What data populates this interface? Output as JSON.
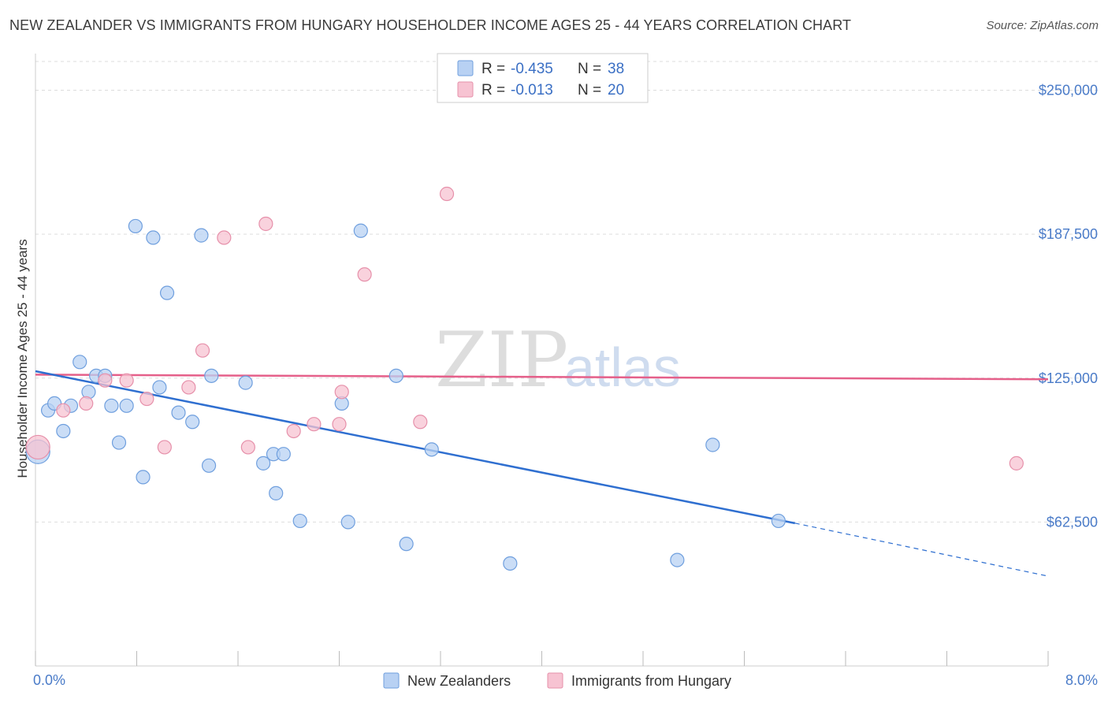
{
  "header": {
    "title": "NEW ZEALANDER VS IMMIGRANTS FROM HUNGARY HOUSEHOLDER INCOME AGES 25 - 44 YEARS CORRELATION CHART",
    "source": "Source: ZipAtlas.com"
  },
  "watermark": {
    "zip": "ZIP",
    "atlas": "atlas"
  },
  "colors": {
    "blue_fill": "#b8d1f3",
    "blue_stroke": "#6f9fde",
    "blue_line": "#2f6fd0",
    "pink_fill": "#f7c3d2",
    "pink_stroke": "#e690aa",
    "pink_line": "#e5608a",
    "grid": "#dddddd",
    "axis_label": "#4a7bc8"
  },
  "legend": {
    "rows": [
      {
        "r_label": "R =",
        "r_value": "-0.435",
        "n_label": "N =",
        "n_value": "38"
      },
      {
        "r_label": "R =",
        "r_value": "-0.013",
        "n_label": "N =",
        "n_value": "20"
      }
    ]
  },
  "chart_data": {
    "type": "scatter",
    "title": "NEW ZEALANDER VS IMMIGRANTS FROM HUNGARY HOUSEHOLDER INCOME AGES 25 - 44 YEARS CORRELATION CHART",
    "xlabel": "",
    "ylabel": "Householder Income Ages 25 - 44 years",
    "xlim": [
      0,
      8
    ],
    "ylim": [
      0,
      262500
    ],
    "x_tick_labels": [
      "0.0%",
      "8.0%"
    ],
    "y_ticks": [
      62500,
      125000,
      187500,
      250000
    ],
    "y_tick_labels": [
      "$62,500",
      "$125,000",
      "$187,500",
      "$250,000"
    ],
    "grid": "horizontal dashed",
    "legend_position": "top-center",
    "series": [
      {
        "name": "New Zealanders",
        "r": -0.435,
        "n": 38,
        "points": [
          [
            0.02,
            93000
          ],
          [
            0.1,
            111000
          ],
          [
            0.15,
            114000
          ],
          [
            0.22,
            102000
          ],
          [
            0.28,
            113000
          ],
          [
            0.35,
            132000
          ],
          [
            0.42,
            119000
          ],
          [
            0.48,
            126000
          ],
          [
            0.55,
            126000
          ],
          [
            0.6,
            113000
          ],
          [
            0.66,
            97000
          ],
          [
            0.72,
            113000
          ],
          [
            0.79,
            191000
          ],
          [
            0.85,
            82000
          ],
          [
            0.93,
            186000
          ],
          [
            0.98,
            121000
          ],
          [
            1.04,
            162000
          ],
          [
            1.13,
            110000
          ],
          [
            1.24,
            106000
          ],
          [
            1.31,
            187000
          ],
          [
            1.37,
            87000
          ],
          [
            1.39,
            126000
          ],
          [
            1.66,
            123000
          ],
          [
            1.8,
            88000
          ],
          [
            1.88,
            92000
          ],
          [
            1.9,
            75000
          ],
          [
            1.96,
            92000
          ],
          [
            2.09,
            63000
          ],
          [
            2.42,
            114000
          ],
          [
            2.47,
            62500
          ],
          [
            2.57,
            189000
          ],
          [
            2.85,
            126000
          ],
          [
            2.93,
            53000
          ],
          [
            3.13,
            94000
          ],
          [
            3.75,
            44500
          ],
          [
            5.07,
            46000
          ],
          [
            5.35,
            96000
          ],
          [
            5.87,
            63000
          ]
        ],
        "trend": {
          "x": [
            0,
            6.0
          ],
          "y": [
            128000,
            62000
          ],
          "dashed_extension": {
            "x": [
              6.0,
              8.0
            ],
            "y": [
              62000,
              39000
            ]
          }
        }
      },
      {
        "name": "Immigrants from Hungary",
        "r": -0.013,
        "n": 20,
        "points": [
          [
            0.02,
            95000
          ],
          [
            0.22,
            111000
          ],
          [
            0.4,
            114000
          ],
          [
            0.55,
            124000
          ],
          [
            0.72,
            124000
          ],
          [
            0.88,
            116000
          ],
          [
            1.02,
            95000
          ],
          [
            1.21,
            121000
          ],
          [
            1.32,
            137000
          ],
          [
            1.49,
            186000
          ],
          [
            1.68,
            95000
          ],
          [
            1.82,
            192000
          ],
          [
            2.04,
            102000
          ],
          [
            2.2,
            105000
          ],
          [
            2.4,
            105000
          ],
          [
            2.42,
            119000
          ],
          [
            2.6,
            170000
          ],
          [
            3.04,
            106000
          ],
          [
            3.25,
            205000
          ],
          [
            7.75,
            88000
          ]
        ],
        "trend": {
          "x": [
            0,
            8.0
          ],
          "y": [
            126500,
            124500
          ]
        }
      }
    ]
  },
  "bottom_legend": {
    "items": [
      {
        "label": "New Zealanders"
      },
      {
        "label": "Immigrants from Hungary"
      }
    ]
  }
}
